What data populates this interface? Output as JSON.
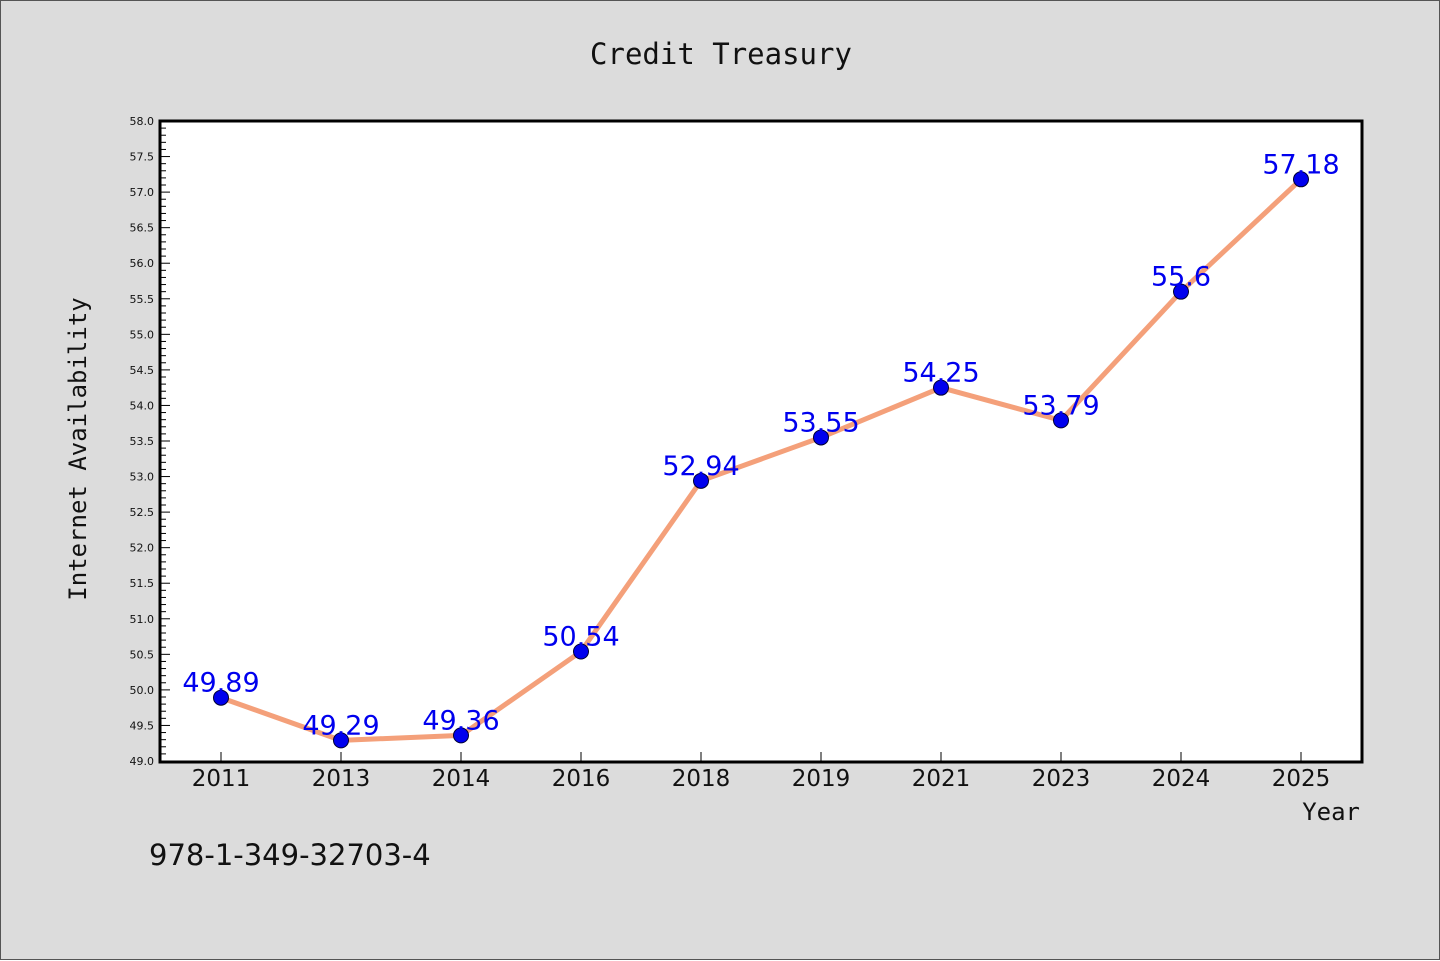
{
  "chart_data": {
    "type": "line",
    "title": "Credit Treasury",
    "xlabel": "Year",
    "ylabel": "Internet Availability",
    "categories": [
      "2011",
      "2013",
      "2014",
      "2016",
      "2018",
      "2019",
      "2021",
      "2023",
      "2024",
      "2025"
    ],
    "series": [
      {
        "values": [
          49.89,
          49.29,
          49.36,
          50.54,
          52.94,
          53.55,
          54.25,
          53.79,
          55.6,
          57.18
        ],
        "data_labels": [
          "49.89",
          "49.29",
          "49.36",
          "50.54",
          "52.94",
          "53.55",
          "54.25",
          "53.79",
          "55.6",
          "57.18"
        ]
      }
    ],
    "ylim": [
      49.0,
      58.0
    ],
    "y_ticks": [
      "49.0",
      "49.5",
      "50.0",
      "50.5",
      "51.0",
      "51.5",
      "52.0",
      "52.5",
      "53.0",
      "53.5",
      "54.0",
      "54.5",
      "55.0",
      "55.5",
      "56.0",
      "56.5",
      "57.0",
      "57.5",
      "58.0"
    ],
    "grid": false,
    "legend": "none",
    "colors": {
      "line": "#f4a07a",
      "marker": "#0000ee",
      "data_label": "#0000ee",
      "figure_background": "#dcdcdc",
      "plot_background": "#ffffff"
    }
  },
  "footer_code": "978-1-349-32703-4"
}
